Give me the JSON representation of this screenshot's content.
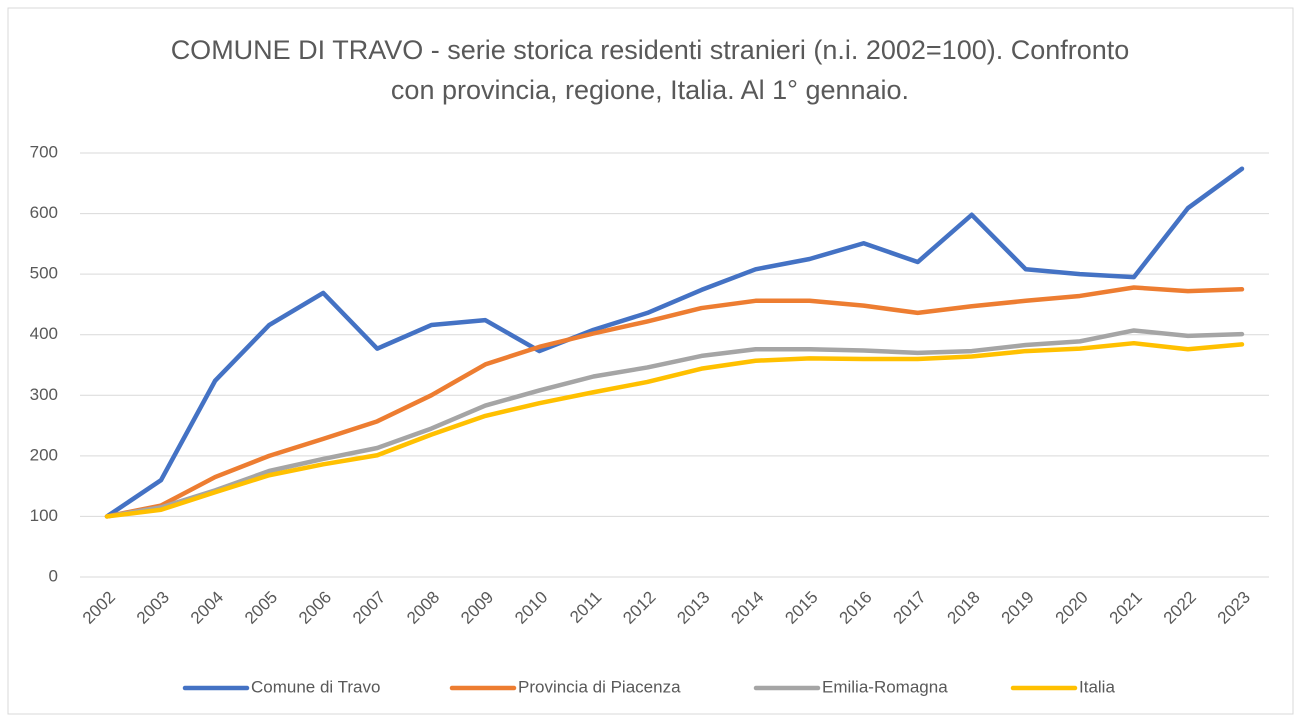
{
  "chart_data": {
    "type": "line",
    "title": "COMUNE DI TRAVO - serie storica residenti stranieri (n.i. 2002=100). Confronto con provincia, regione, Italia. Al 1° gennaio.",
    "categories": [
      "2002",
      "2003",
      "2004",
      "2005",
      "2006",
      "2007",
      "2008",
      "2009",
      "2010",
      "2011",
      "2012",
      "2013",
      "2014",
      "2015",
      "2016",
      "2017",
      "2018",
      "2019",
      "2020",
      "2021",
      "2022",
      "2023"
    ],
    "series": [
      {
        "name": "Comune di Travo",
        "color": "#4472c4",
        "values": [
          100,
          160,
          324,
          416,
          469,
          377,
          416,
          424,
          373,
          408,
          436,
          474,
          508,
          525,
          551,
          520,
          598,
          508,
          500,
          495,
          609,
          674
        ]
      },
      {
        "name": "Provincia di Piacenza",
        "color": "#ed7d31",
        "values": [
          100,
          118,
          165,
          200,
          228,
          257,
          300,
          351,
          380,
          402,
          422,
          444,
          456,
          456,
          448,
          436,
          447,
          456,
          464,
          478,
          472,
          475
        ]
      },
      {
        "name": "Emilia-Romagna",
        "color": "#a5a5a5",
        "values": [
          100,
          115,
          143,
          175,
          195,
          213,
          245,
          283,
          308,
          331,
          346,
          365,
          376,
          376,
          374,
          370,
          373,
          383,
          389,
          407,
          398,
          401
        ]
      },
      {
        "name": "Italia",
        "color": "#ffc000",
        "values": [
          100,
          111,
          140,
          168,
          186,
          201,
          235,
          266,
          287,
          305,
          322,
          344,
          357,
          361,
          360,
          360,
          364,
          373,
          377,
          386,
          376,
          384
        ]
      }
    ],
    "ylim": [
      0,
      700
    ],
    "yticks": [
      0,
      100,
      200,
      300,
      400,
      500,
      600,
      700
    ],
    "grid": true,
    "legend": "bottom"
  }
}
